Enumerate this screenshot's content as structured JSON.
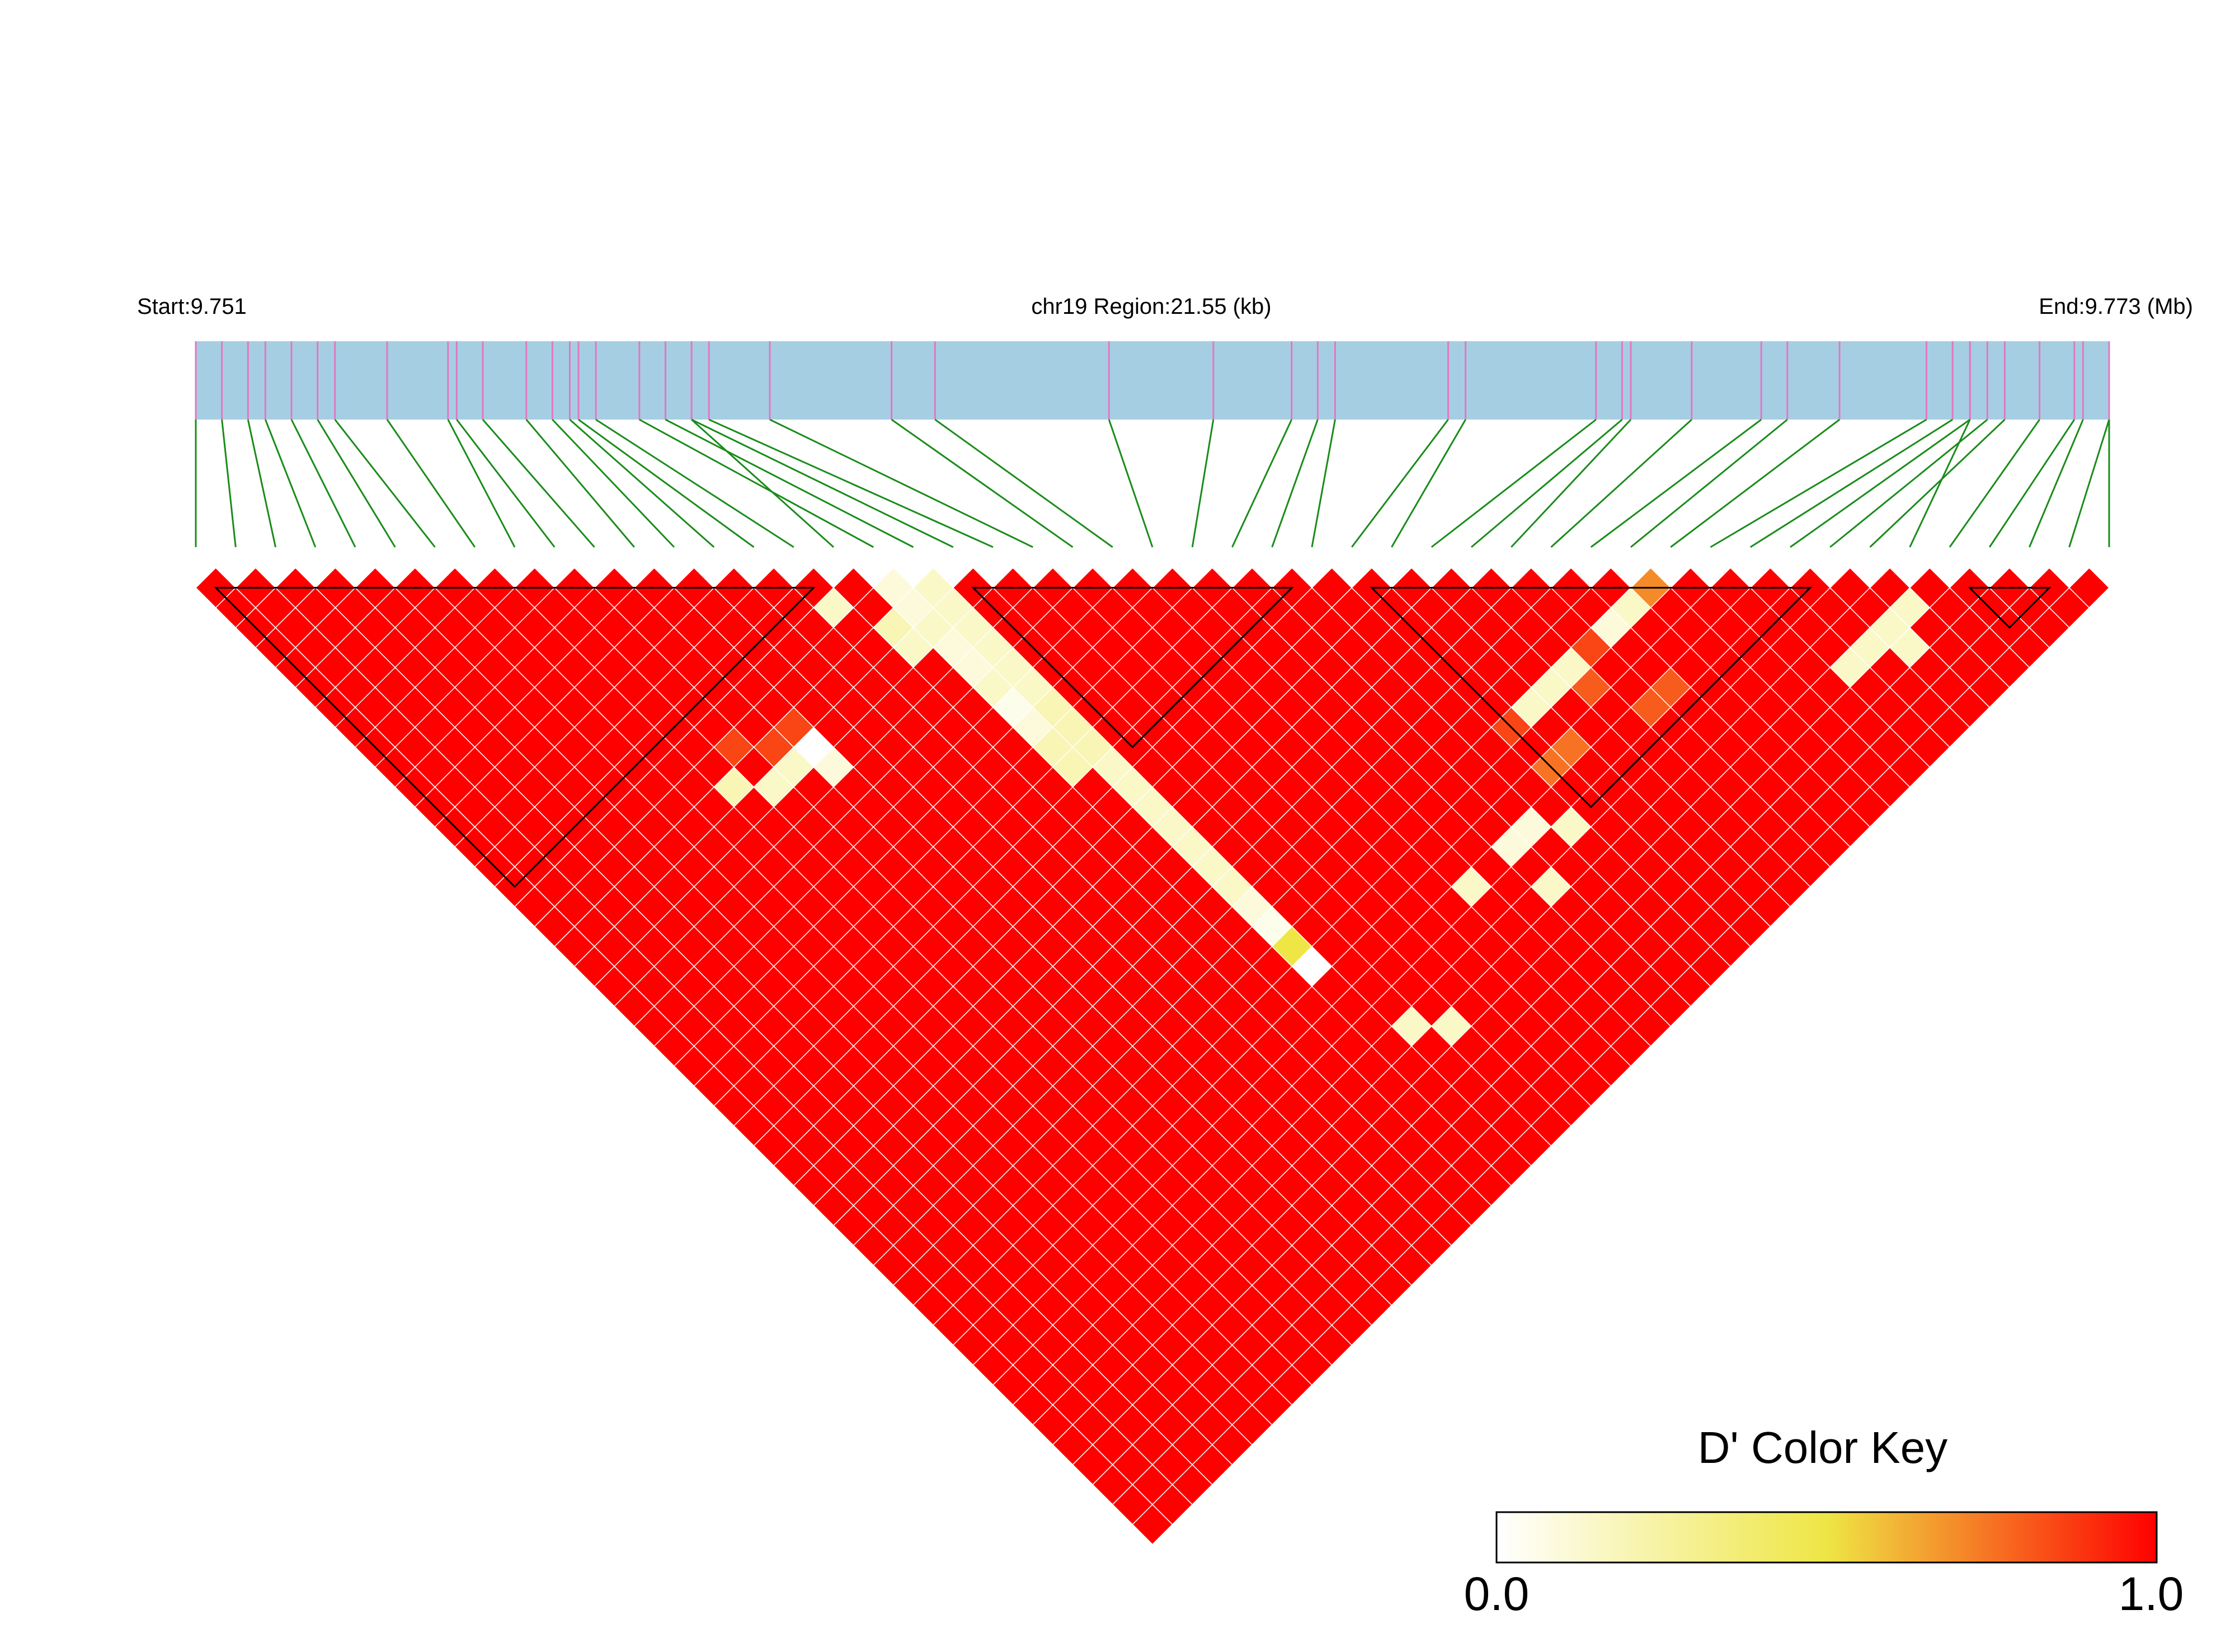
{
  "header": {
    "start_label": "Start:9.751",
    "region_label": "chr19 Region:21.55 (kb)",
    "end_label": "End:9.773 (Mb)"
  },
  "legend": {
    "title": "D' Color Key",
    "min_label": "0.0",
    "max_label": "1.0"
  },
  "colors": {
    "track": "#a6cee3",
    "snp_tick": "#e377c2",
    "connector": "#1a8c1a",
    "scale_low": "#ffffff",
    "scale_mid": "#eee645",
    "scale_high": "#ff0000",
    "cell_border": "#ffffff",
    "block_outline": "#000000"
  },
  "chart_data": {
    "type": "heatmap",
    "measure": "D'",
    "chromosome": "chr19",
    "region_start_mb": 9.751,
    "region_end_mb": 9.773,
    "region_length_kb": 21.55,
    "value_range": [
      0,
      1
    ],
    "default_value": 1.0,
    "n_snps": 49,
    "snp_positions_mb": [
      9.751,
      9.7513,
      9.7516,
      9.7518,
      9.7521,
      9.7524,
      9.7526,
      9.7532,
      9.7539,
      9.754,
      9.7543,
      9.7548,
      9.7551,
      9.7553,
      9.7554,
      9.7556,
      9.7567,
      9.7561,
      9.7564,
      9.7567,
      9.7569,
      9.7576,
      9.759,
      9.7595,
      9.7615,
      9.7627,
      9.7636,
      9.7639,
      9.7641,
      9.7654,
      9.7656,
      9.7671,
      9.7674,
      9.7675,
      9.7682,
      9.769,
      9.7693,
      9.7699,
      9.7709,
      9.7712,
      9.7714,
      9.7716,
      9.7718,
      9.7714,
      9.7722,
      9.7726,
      9.7727,
      9.773,
      9.773
    ],
    "cells": [
      {
        "i": 17,
        "j": 18,
        "value": 0.1
      },
      {
        "i": 17,
        "j": 19,
        "value": 0.1
      },
      {
        "i": 17,
        "j": 20,
        "value": 0.15
      },
      {
        "i": 17,
        "j": 21,
        "value": 0.1
      },
      {
        "i": 17,
        "j": 22,
        "value": 0.1
      },
      {
        "i": 17,
        "j": 23,
        "value": 0.15
      },
      {
        "i": 17,
        "j": 24,
        "value": 0.05
      },
      {
        "i": 17,
        "j": 25,
        "value": 0.1
      },
      {
        "i": 17,
        "j": 26,
        "value": 0.2
      },
      {
        "i": 17,
        "j": 27,
        "value": 0.2
      },
      {
        "i": 18,
        "j": 19,
        "value": 0.15
      },
      {
        "i": 18,
        "j": 20,
        "value": 0.15
      },
      {
        "i": 18,
        "j": 21,
        "value": 0.15
      },
      {
        "i": 18,
        "j": 22,
        "value": 0.15
      },
      {
        "i": 18,
        "j": 23,
        "value": 0.15
      },
      {
        "i": 18,
        "j": 24,
        "value": 0.15
      },
      {
        "i": 18,
        "j": 25,
        "value": 0.2
      },
      {
        "i": 18,
        "j": 26,
        "value": 0.2
      },
      {
        "i": 18,
        "j": 27,
        "value": 0.2
      },
      {
        "i": 18,
        "j": 28,
        "value": 0.15
      },
      {
        "i": 18,
        "j": 29,
        "value": 0.15
      },
      {
        "i": 18,
        "j": 30,
        "value": 0.15
      },
      {
        "i": 18,
        "j": 31,
        "value": 0.15
      },
      {
        "i": 18,
        "j": 32,
        "value": 0.15
      },
      {
        "i": 18,
        "j": 33,
        "value": 0.15
      },
      {
        "i": 18,
        "j": 34,
        "value": 0.15
      },
      {
        "i": 18,
        "j": 35,
        "value": 0.1
      },
      {
        "i": 18,
        "j": 36,
        "value": 0.05
      },
      {
        "i": 18,
        "j": 37,
        "value": 0.5
      },
      {
        "i": 18,
        "j": 38,
        "value": 0.0
      },
      {
        "i": 30,
        "j": 37,
        "value": 0.15
      },
      {
        "i": 31,
        "j": 37,
        "value": 0.15
      },
      {
        "i": 32,
        "j": 37,
        "value": 0.15
      },
      {
        "i": 33,
        "j": 37,
        "value": 0.15
      },
      {
        "i": 34,
        "j": 37,
        "value": 0.1
      },
      {
        "i": 35,
        "j": 37,
        "value": 0.15
      },
      {
        "i": 36,
        "j": 37,
        "value": 0.7
      },
      {
        "i": 29,
        "j": 39,
        "value": 0.75
      },
      {
        "i": 30,
        "j": 39,
        "value": 0.75
      },
      {
        "i": 32,
        "j": 38,
        "value": 0.8
      },
      {
        "i": 33,
        "j": 40,
        "value": 0.8
      },
      {
        "i": 34,
        "j": 40,
        "value": 0.8
      },
      {
        "i": 33,
        "j": 37,
        "value": 0.85
      },
      {
        "i": 29,
        "j": 37,
        "value": 0.85
      },
      {
        "i": 39,
        "j": 44,
        "value": 0.15
      },
      {
        "i": 40,
        "j": 44,
        "value": 0.15
      },
      {
        "i": 41,
        "j": 44,
        "value": 0.15
      },
      {
        "i": 42,
        "j": 44,
        "value": 0.15
      },
      {
        "i": 41,
        "j": 45,
        "value": 0.15
      },
      {
        "i": 16,
        "j": 19,
        "value": 0.2
      },
      {
        "i": 16,
        "j": 20,
        "value": 0.15
      },
      {
        "i": 15,
        "j": 17,
        "value": 0.15
      },
      {
        "i": 11,
        "j": 20,
        "value": 0.0
      },
      {
        "i": 11,
        "j": 21,
        "value": 0.1
      },
      {
        "i": 10,
        "j": 20,
        "value": 0.15
      },
      {
        "i": 9,
        "j": 20,
        "value": 0.15
      },
      {
        "i": 8,
        "j": 19,
        "value": 0.2
      },
      {
        "i": 10,
        "j": 19,
        "value": 0.85
      },
      {
        "i": 11,
        "j": 19,
        "value": 0.85
      },
      {
        "i": 9,
        "j": 18,
        "value": 0.85
      },
      {
        "i": 26,
        "j": 42,
        "value": 0.15
      },
      {
        "i": 28,
        "j": 41,
        "value": 0.15
      },
      {
        "i": 26,
        "j": 40,
        "value": 0.1
      },
      {
        "i": 27,
        "j": 40,
        "value": 0.1
      },
      {
        "i": 24,
        "j": 40,
        "value": 0.15
      },
      {
        "i": 20,
        "j": 43,
        "value": 0.15
      },
      {
        "i": 19,
        "j": 42,
        "value": 0.15
      }
    ],
    "blocks": [
      [
        0,
        16
      ],
      [
        19,
        28
      ],
      [
        29,
        41
      ],
      [
        44,
        47
      ]
    ]
  }
}
